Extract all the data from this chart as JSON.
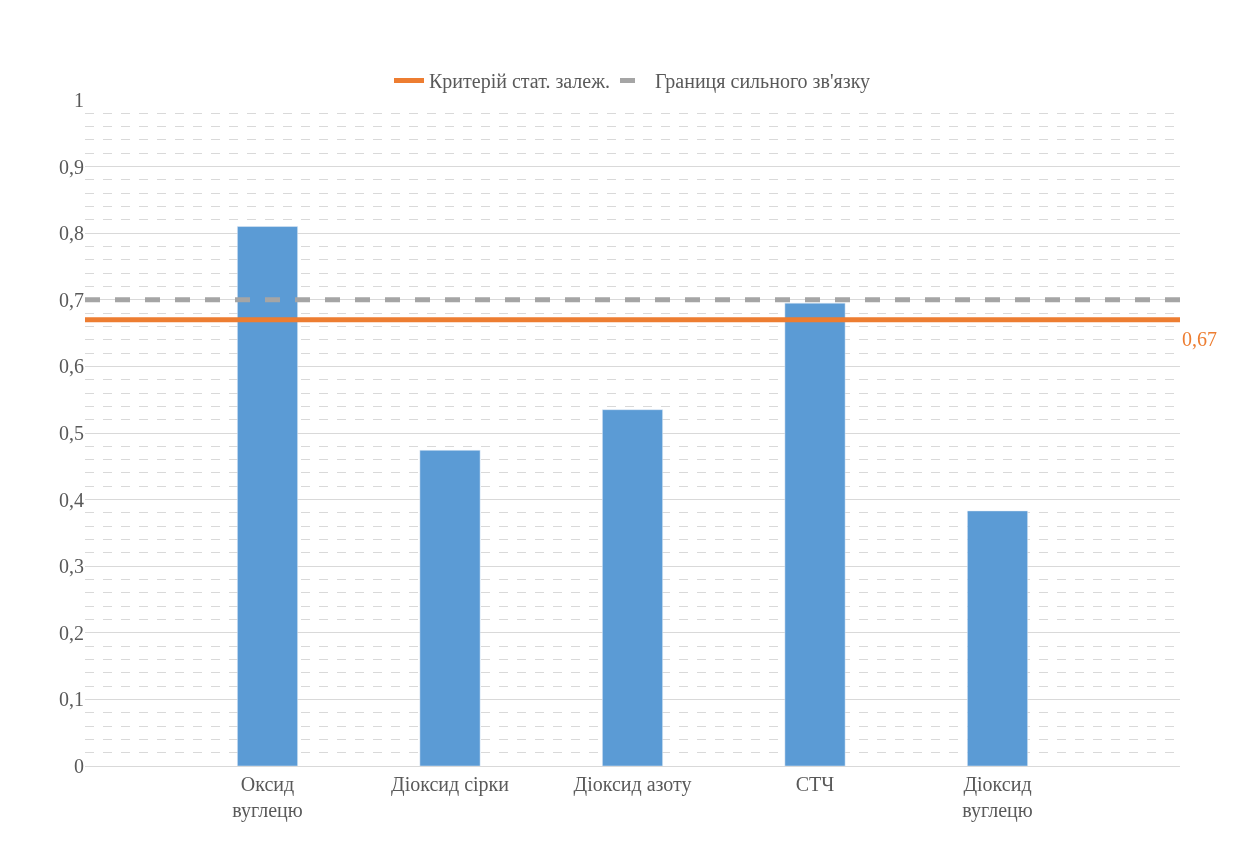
{
  "chart_data": {
    "type": "bar",
    "categories": [
      "Оксид\nвуглецю",
      "Діоксид сірки",
      "Діоксид азоту",
      "СТЧ",
      "Діоксид\nвуглецю"
    ],
    "values": [
      0.81,
      0.474,
      0.535,
      0.695,
      0.383
    ],
    "color": "#5b9bd5",
    "ylim": [
      0,
      1
    ],
    "yticks": [
      0,
      {
        "value": 0.1,
        "label": "0,1"
      },
      {
        "value": 0.2,
        "label": "0,2"
      },
      {
        "value": 0.3,
        "label": "0,3"
      },
      {
        "value": 0.4,
        "label": "0,4"
      },
      {
        "value": 0.5,
        "label": "0,5"
      },
      {
        "value": 0.6,
        "label": "0,6"
      },
      {
        "value": 0.7,
        "label": "0,7"
      },
      {
        "value": 0.8,
        "label": "0,8"
      },
      {
        "value": 0.9,
        "label": "0,9"
      },
      1
    ],
    "ref_lines": [
      {
        "axis": "y",
        "value": 0.67,
        "label": "Критерій стат. залеж.",
        "color": "#ed7d31",
        "line_style": "solid"
      },
      {
        "axis": "y",
        "value": 0.7,
        "label": "Границя сильного зв'язку",
        "color": "#a5a5a5",
        "line_style": "dashed"
      }
    ],
    "annotations": [
      "0,67"
    ],
    "grid": "y",
    "legend": "top"
  }
}
